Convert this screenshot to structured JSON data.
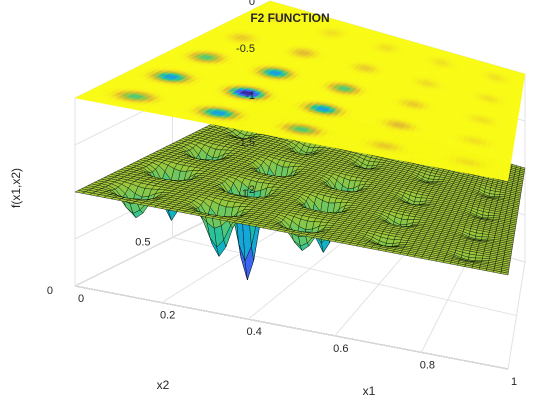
{
  "chart_data": {
    "type": "surface3d",
    "title": "F2 FUNCTION",
    "xlabel": "x1",
    "ylabel": "x2",
    "zlabel": "f(x1,x2)",
    "xlim": [
      0,
      1
    ],
    "ylim": [
      0,
      1
    ],
    "zlim": [
      -2,
      0
    ],
    "xticks": [
      "0",
      "0.2",
      "0.4",
      "0.6",
      "0.8",
      "1"
    ],
    "yticks": [
      "0",
      "0.5",
      "1"
    ],
    "zticks": [
      "-2",
      "-1.5",
      "-1",
      "-0.5",
      "0"
    ],
    "grid": true,
    "colormap": "parula",
    "layers": [
      {
        "kind": "mesh surface",
        "base_z": -1
      },
      {
        "kind": "flat colored surface",
        "z": 0
      }
    ]
  }
}
